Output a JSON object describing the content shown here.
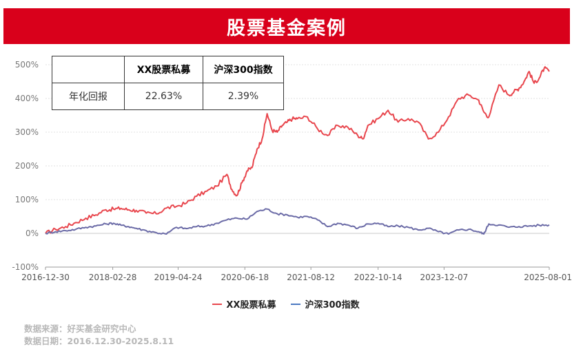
{
  "header": {
    "title": "股票基金案例"
  },
  "table": {
    "headers": [
      "",
      "XX股票私募",
      "沪深300指数"
    ],
    "rows": [
      {
        "label": "年化回报",
        "values": [
          "22.63%",
          "2.39%"
        ]
      }
    ]
  },
  "footer": {
    "source": "数据来源：好买基金研究中心",
    "date": "数据日期：2016.12.30-2025.8.11"
  },
  "colors": {
    "brand": "#d9001b",
    "private_fund": "#e8454c",
    "index": "#6a6aa6"
  },
  "chart_data": {
    "type": "line",
    "x_labels": [
      "2016-12-30",
      "2018-02-28",
      "2019-04-24",
      "2020-06-18",
      "2021-08-12",
      "2022-10-14",
      "2023-12-07",
      "2025-08-01"
    ],
    "x_label_positions": [
      0,
      0.1335,
      0.2633,
      0.3958,
      0.5269,
      0.6602,
      0.7912,
      1.0
    ],
    "y_ticks": [
      "500%",
      "400%",
      "300%",
      "200%",
      "100%",
      "0%",
      "-100%"
    ],
    "ylim": [
      -100,
      500
    ],
    "grid": true,
    "legend_position": "bottom",
    "series": [
      {
        "name": "XX股票私募",
        "color": "#e8454c",
        "x": [
          0,
          0.02,
          0.04,
          0.06,
          0.08,
          0.1,
          0.12,
          0.135,
          0.15,
          0.165,
          0.18,
          0.2,
          0.22,
          0.24,
          0.26,
          0.28,
          0.3,
          0.32,
          0.34,
          0.36,
          0.37,
          0.38,
          0.39,
          0.4,
          0.41,
          0.42,
          0.43,
          0.44,
          0.45,
          0.46,
          0.47,
          0.48,
          0.49,
          0.5,
          0.52,
          0.54,
          0.56,
          0.58,
          0.6,
          0.62,
          0.63,
          0.64,
          0.66,
          0.68,
          0.7,
          0.72,
          0.74,
          0.76,
          0.78,
          0.8,
          0.82,
          0.84,
          0.86,
          0.87,
          0.88,
          0.9,
          0.92,
          0.93,
          0.94,
          0.95,
          0.96,
          0.97,
          0.98,
          0.99,
          1.0
        ],
        "values": [
          0,
          12,
          20,
          32,
          45,
          55,
          70,
          72,
          74,
          70,
          68,
          60,
          58,
          75,
          80,
          90,
          110,
          125,
          140,
          175,
          130,
          112,
          150,
          185,
          195,
          250,
          280,
          355,
          305,
          300,
          320,
          330,
          340,
          340,
          345,
          310,
          290,
          320,
          315,
          290,
          280,
          320,
          340,
          365,
          330,
          340,
          330,
          280,
          300,
          345,
          400,
          410,
          395,
          360,
          345,
          440,
          410,
          420,
          430,
          450,
          480,
          445,
          460,
          490,
          480
        ]
      },
      {
        "name": "沪深300指数",
        "color": "#6a6aa6",
        "x": [
          0,
          0.02,
          0.04,
          0.06,
          0.08,
          0.1,
          0.12,
          0.135,
          0.15,
          0.165,
          0.18,
          0.2,
          0.22,
          0.24,
          0.26,
          0.28,
          0.3,
          0.32,
          0.34,
          0.36,
          0.38,
          0.4,
          0.42,
          0.44,
          0.46,
          0.48,
          0.5,
          0.52,
          0.54,
          0.56,
          0.58,
          0.6,
          0.62,
          0.64,
          0.66,
          0.68,
          0.7,
          0.72,
          0.74,
          0.76,
          0.78,
          0.8,
          0.82,
          0.84,
          0.86,
          0.87,
          0.88,
          0.9,
          0.92,
          0.94,
          0.96,
          0.98,
          1.0
        ],
        "values": [
          0,
          5,
          8,
          12,
          18,
          22,
          28,
          30,
          24,
          20,
          15,
          8,
          2,
          -2,
          18,
          14,
          20,
          22,
          30,
          40,
          45,
          42,
          65,
          72,
          58,
          55,
          48,
          50,
          40,
          20,
          30,
          25,
          15,
          28,
          30,
          20,
          22,
          18,
          10,
          15,
          5,
          -2,
          10,
          12,
          5,
          -2,
          28,
          25,
          18,
          20,
          22,
          24,
          25
        ]
      }
    ]
  }
}
